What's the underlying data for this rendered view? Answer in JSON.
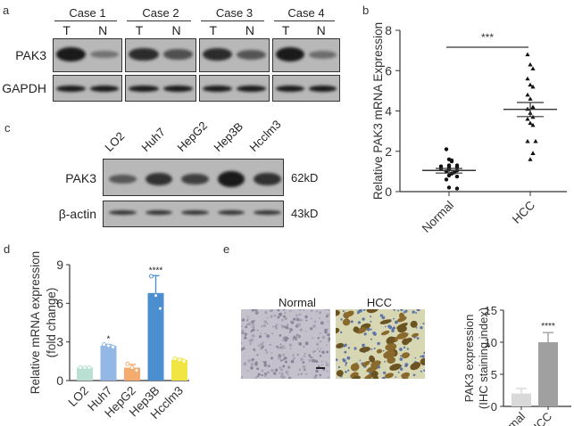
{
  "panels": {
    "a": {
      "label": "a",
      "cases": [
        "Case 1",
        "Case 2",
        "Case 3",
        "Case 4"
      ],
      "lanes": [
        "T",
        "N"
      ],
      "rows": [
        "PAK3",
        "GAPDH"
      ]
    },
    "b": {
      "label": "b"
    },
    "c": {
      "label": "c",
      "cell_lines": [
        "LO2",
        "Huh7",
        "HepG2",
        "Hep3B",
        "Hcclm3"
      ],
      "rows": [
        "PAK3",
        "β-actin"
      ],
      "sizes": [
        "62kD",
        "43kD"
      ]
    },
    "d": {
      "label": "d"
    },
    "e": {
      "label": "e",
      "image_titles": [
        "Normal",
        "HCC"
      ]
    }
  },
  "chart_data": [
    {
      "panel": "b",
      "type": "scatter",
      "title": "",
      "xlabel": "",
      "ylabel": "Relative PAK3 mRNA Expression",
      "categories": [
        "Normal",
        "HCC"
      ],
      "ylim": [
        0,
        8
      ],
      "yticks": [
        0,
        2,
        4,
        6,
        8
      ],
      "series": [
        {
          "name": "Normal",
          "marker": "circle",
          "values": [
            2.1,
            1.6,
            1.5,
            1.55,
            1.3,
            1.3,
            1.25,
            1.2,
            1.2,
            1.15,
            1.1,
            1.05,
            1.0,
            0.95,
            0.9,
            0.9,
            0.8,
            0.75,
            0.6,
            0.2,
            0.15
          ],
          "mean": 1.05,
          "sem_low": 0.92,
          "sem_high": 1.15
        },
        {
          "name": "HCC",
          "marker": "triangle",
          "values": [
            6.8,
            6.3,
            6.1,
            5.6,
            5.3,
            5.2,
            4.8,
            4.6,
            4.2,
            4.1,
            3.9,
            3.7,
            3.6,
            3.4,
            3.3,
            2.5,
            2.5,
            1.9,
            1.9,
            1.6
          ],
          "mean": 4.08,
          "sem_low": 3.72,
          "sem_high": 4.42
        }
      ],
      "annotations": [
        "***"
      ],
      "grid": false
    },
    {
      "panel": "d",
      "type": "bar",
      "title": "",
      "xlabel": "",
      "ylabel": "Relative mRNA expression (fold change)",
      "categories": [
        "LO2",
        "Huh7",
        "HepG2",
        "Hep3B",
        "Hcclm3"
      ],
      "values": [
        1.0,
        2.7,
        1.0,
        6.8,
        1.6
      ],
      "errors": [
        0.05,
        0.1,
        0.25,
        1.35,
        0.1
      ],
      "points": [
        [
          1.0,
          1.0,
          1.0
        ],
        [
          2.8,
          2.7,
          2.6
        ],
        [
          1.3,
          1.0,
          0.8
        ],
        [
          8.1,
          6.6,
          5.6
        ],
        [
          1.7,
          1.6,
          1.5
        ]
      ],
      "colors": [
        "#b9e0d2",
        "#93b8e6",
        "#f5aa6e",
        "#4c8fd0",
        "#f0e542"
      ],
      "annotations": [
        "",
        "*",
        "",
        "****",
        ""
      ],
      "ylim": [
        0,
        9
      ],
      "yticks": [
        0,
        3,
        6,
        9
      ],
      "grid": false
    },
    {
      "panel": "e",
      "type": "bar",
      "title": "",
      "xlabel": "",
      "ylabel": "PAK3 expression (IHC staining index)",
      "categories": [
        "normal",
        "HCC"
      ],
      "values": [
        2.0,
        10.0
      ],
      "errors": [
        0.8,
        1.5
      ],
      "colors": [
        "#d9d9d9",
        "#a0a0a0"
      ],
      "annotations": [
        "",
        "****"
      ],
      "ylim": [
        0,
        15
      ],
      "yticks": [
        0,
        5,
        10,
        15
      ],
      "grid": false
    }
  ]
}
